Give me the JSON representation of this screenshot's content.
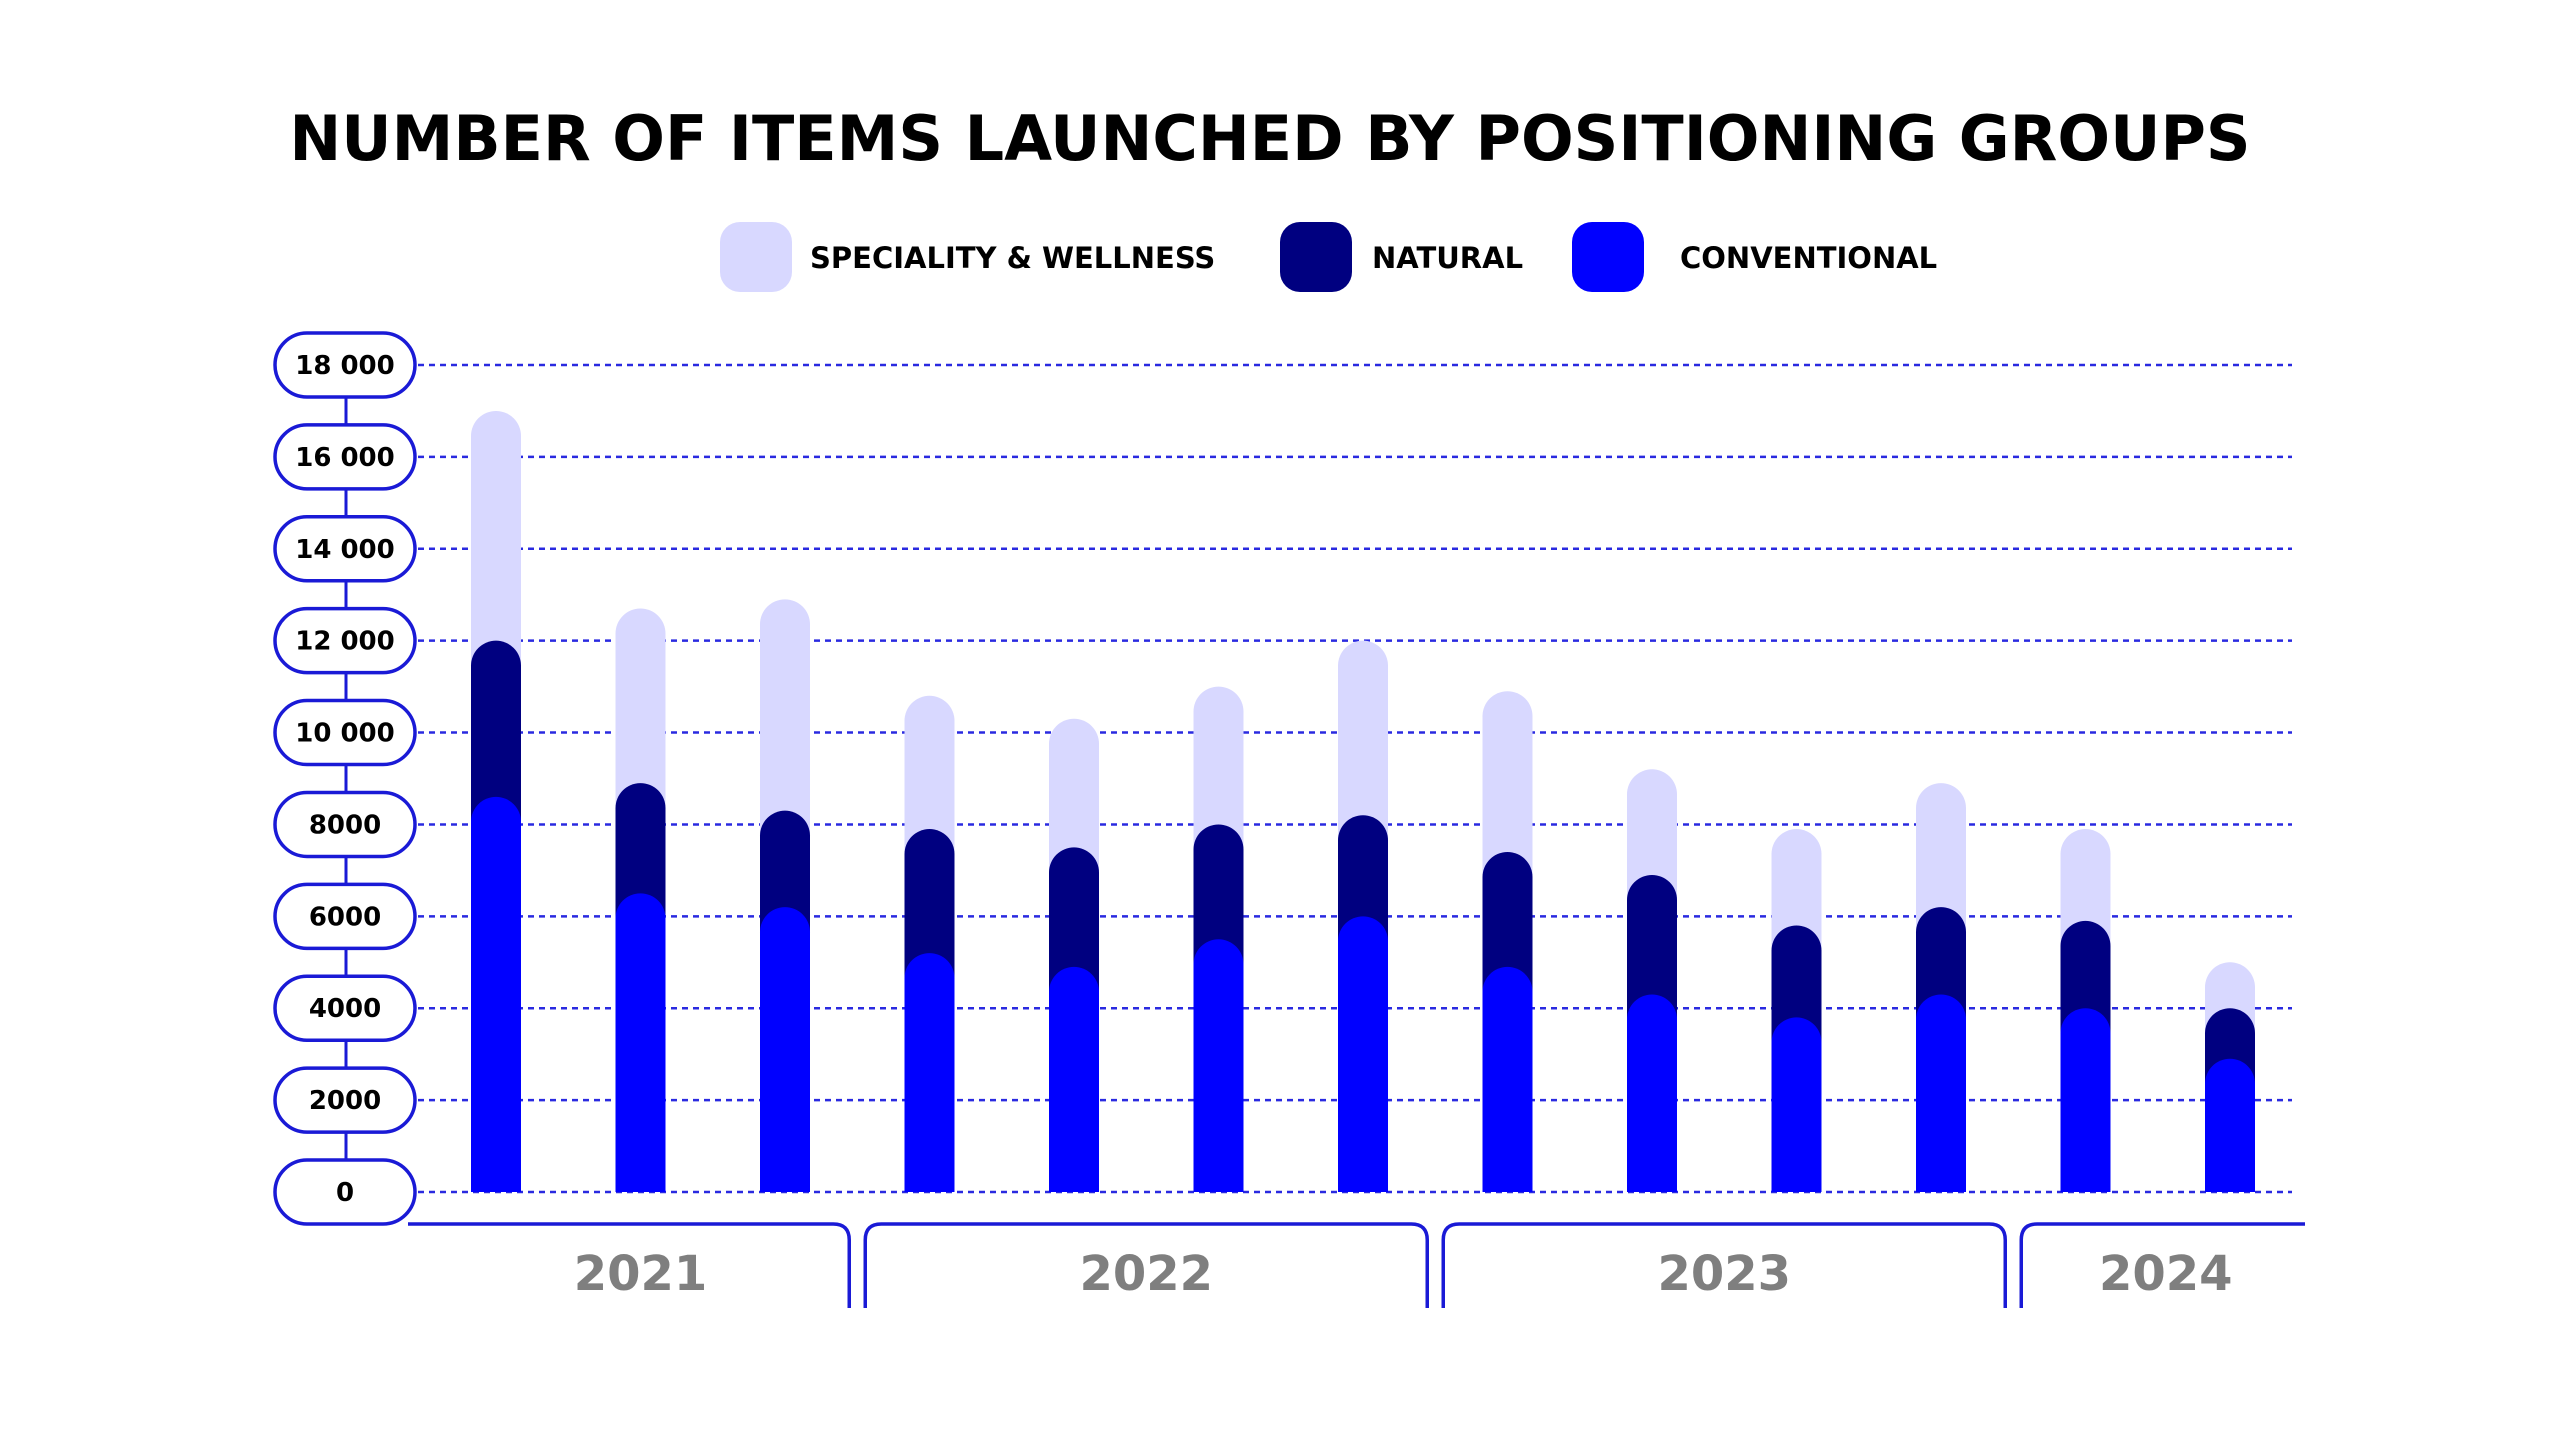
{
  "chart_data": {
    "type": "bar",
    "stacked": true,
    "title": "NUMBER OF ITEMS LAUNCHED BY POSITIONING GROUPS",
    "xlabel": "",
    "ylabel": "",
    "ylim": [
      0,
      18000
    ],
    "y_ticks": [
      {
        "value": 0,
        "label": "0"
      },
      {
        "value": 2000,
        "label": "2000"
      },
      {
        "value": 4000,
        "label": "4000"
      },
      {
        "value": 6000,
        "label": "6000"
      },
      {
        "value": 8000,
        "label": "8000"
      },
      {
        "value": 10000,
        "label": "10 000"
      },
      {
        "value": 12000,
        "label": "12 000"
      },
      {
        "value": 14000,
        "label": "14 000"
      },
      {
        "value": 16000,
        "label": "16 000"
      },
      {
        "value": 18000,
        "label": "18 000"
      }
    ],
    "grid": true,
    "legend_position": "top-center",
    "year_groups": [
      {
        "label": "2021",
        "count": 3
      },
      {
        "label": "2022",
        "count": 4
      },
      {
        "label": "2023",
        "count": 4
      },
      {
        "label": "2024",
        "count": 2
      }
    ],
    "series": [
      {
        "name": "CONVENTIONAL",
        "color": "#0000ff",
        "values": [
          8600,
          6500,
          6200,
          5200,
          4900,
          5500,
          6000,
          4900,
          4300,
          3800,
          4300,
          4000,
          2900
        ]
      },
      {
        "name": "NATURAL",
        "color": "#000080",
        "values": [
          3400,
          2400,
          2100,
          2700,
          2600,
          2500,
          2200,
          2500,
          2600,
          2000,
          1900,
          1900,
          1100
        ]
      },
      {
        "name": "SPECIALITY & WELLNESS",
        "color": "#d8d8ff",
        "values": [
          5000,
          3800,
          4600,
          2900,
          2800,
          3000,
          3800,
          3500,
          2300,
          2100,
          2700,
          2000,
          1000
        ]
      }
    ],
    "legend": [
      {
        "label": "SPECIALITY & WELLNESS",
        "color": "#d8d8ff"
      },
      {
        "label": "NATURAL",
        "color": "#000080"
      },
      {
        "label": "CONVENTIONAL",
        "color": "#0000ff"
      }
    ],
    "colors": {
      "grid": "#2a2ae0",
      "axis": "#1a1ad6",
      "year_text": "#7f7f7f"
    }
  }
}
